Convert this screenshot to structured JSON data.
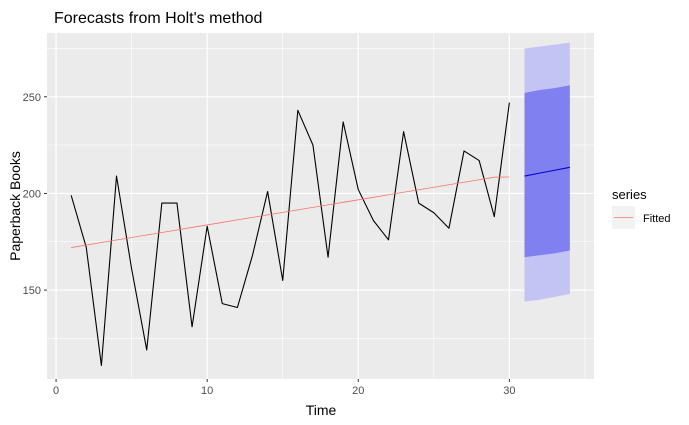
{
  "chart_data": {
    "type": "line",
    "title": "Forecasts from Holt's method",
    "xlabel": "Time",
    "ylabel": "Paperback Books",
    "xlim": [
      -0.6,
      35.6
    ],
    "ylim": [
      104,
      283
    ],
    "x_ticks": [
      0,
      10,
      20,
      30
    ],
    "y_ticks": [
      150,
      200,
      250
    ],
    "grid": true,
    "legend": {
      "title": "series",
      "position": "right",
      "entries": [
        {
          "label": "Fitted",
          "color": "#f8766d"
        }
      ]
    },
    "colors": {
      "panel": "#ebebeb",
      "grid": "#ffffff",
      "observed": "#000000",
      "fitted": "#f8766d",
      "forecast": "#0000cc",
      "band80": "#8080f0",
      "band95": "#c4c4f4"
    },
    "series": [
      {
        "role": "observed",
        "x": [
          1,
          2,
          3,
          4,
          5,
          6,
          7,
          8,
          9,
          10,
          11,
          12,
          13,
          14,
          15,
          16,
          17,
          18,
          19,
          20,
          21,
          22,
          23,
          24,
          25,
          26,
          27,
          28,
          29,
          30
        ],
        "values": [
          199,
          172,
          111,
          209,
          161,
          119,
          195,
          195,
          131,
          183,
          143,
          141,
          168,
          201,
          155,
          243,
          225,
          167,
          237,
          202,
          186,
          176,
          232,
          195,
          190,
          182,
          222,
          217,
          188,
          247
        ]
      },
      {
        "name": "Fitted",
        "role": "fitted",
        "x": [
          1,
          2,
          3,
          4,
          5,
          6,
          7,
          8,
          9,
          10,
          11,
          12,
          13,
          14,
          15,
          16,
          17,
          18,
          19,
          20,
          21,
          22,
          23,
          24,
          25,
          26,
          27,
          28,
          29,
          30
        ],
        "values": [
          172,
          173.3,
          174.6,
          175.9,
          177.2,
          178.5,
          179.8,
          181.1,
          182.4,
          183.7,
          185,
          186.3,
          187.6,
          188.9,
          190.2,
          191.5,
          192.8,
          194.1,
          195.4,
          196.7,
          198,
          199.3,
          200.6,
          201.9,
          203.2,
          204.5,
          205.8,
          207.1,
          208.4,
          208.5
        ]
      },
      {
        "role": "forecast",
        "x": [
          31,
          32,
          33,
          34
        ],
        "values": [
          209,
          210.5,
          212,
          213.5
        ],
        "lo80": [
          167,
          168,
          169,
          170.5
        ],
        "hi80": [
          252,
          253.5,
          254.5,
          256
        ],
        "lo95": [
          144,
          145,
          146.5,
          148
        ],
        "hi95": [
          275,
          276,
          277,
          278
        ]
      }
    ]
  }
}
